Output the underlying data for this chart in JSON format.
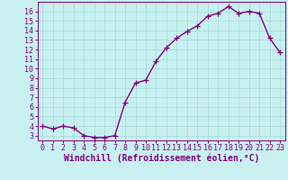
{
  "x": [
    0,
    1,
    2,
    3,
    4,
    5,
    6,
    7,
    8,
    9,
    10,
    11,
    12,
    13,
    14,
    15,
    16,
    17,
    18,
    19,
    20,
    21,
    22,
    23
  ],
  "y": [
    4.0,
    3.7,
    4.0,
    3.8,
    3.0,
    2.8,
    2.8,
    3.0,
    6.5,
    8.5,
    8.8,
    10.8,
    12.2,
    13.2,
    13.9,
    14.5,
    15.5,
    15.8,
    16.5,
    15.8,
    16.0,
    15.8,
    13.2,
    11.7
  ],
  "line_color": "#800080",
  "marker": "+",
  "markersize": 4,
  "linewidth": 1.0,
  "bg_color": "#c8f0f0",
  "grid_color": "#aadddd",
  "xlabel": "Windchill (Refroidissement éolien,°C)",
  "ylabel": "",
  "xlim": [
    -0.5,
    23.5
  ],
  "ylim": [
    2.5,
    17.0
  ],
  "yticks": [
    3,
    4,
    5,
    6,
    7,
    8,
    9,
    10,
    11,
    12,
    13,
    14,
    15,
    16
  ],
  "xticks": [
    0,
    1,
    2,
    3,
    4,
    5,
    6,
    7,
    8,
    9,
    10,
    11,
    12,
    13,
    14,
    15,
    16,
    17,
    18,
    19,
    20,
    21,
    22,
    23
  ],
  "tick_color": "#800080",
  "label_color": "#800080",
  "spine_color": "#800080",
  "xlabel_fontsize": 7.0,
  "tick_fontsize": 6.0
}
